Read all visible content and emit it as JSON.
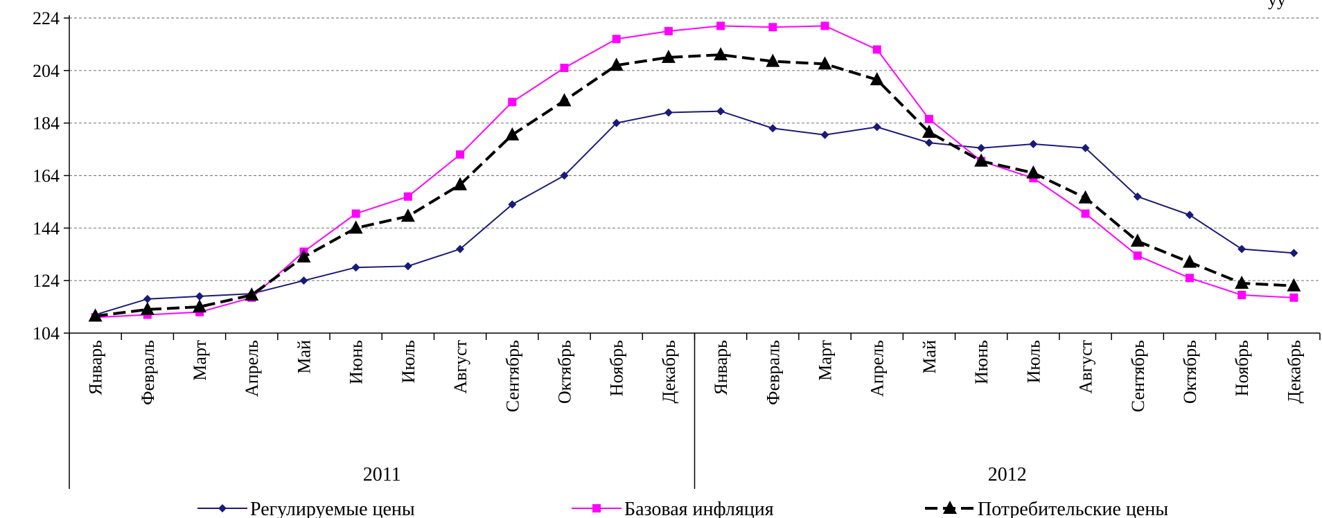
{
  "chart_data": {
    "type": "line",
    "title": "",
    "corner_note": "уу",
    "ylim": [
      104,
      224
    ],
    "yticks": [
      104,
      124,
      144,
      164,
      184,
      204,
      224
    ],
    "grid": "horizontal dashed",
    "legend_position": "bottom",
    "categories": [
      "Январь",
      "Февраль",
      "Март",
      "Апрель",
      "Май",
      "Июнь",
      "Июль",
      "Август",
      "Сентябрь",
      "Октябрь",
      "Ноябрь",
      "Декабрь",
      "Январь",
      "Февраль",
      "Март",
      "Апрель",
      "Май",
      "Июнь",
      "Июль",
      "Август",
      "Сентябрь",
      "Октябрь",
      "Ноябрь",
      "Декабрь"
    ],
    "year_groups": [
      {
        "label": "2011",
        "start": 0,
        "end": 11
      },
      {
        "label": "2012",
        "start": 12,
        "end": 23
      }
    ],
    "series": [
      {
        "name": "Регулируемые цены",
        "color": "#1a1a7a",
        "marker": "diamond",
        "dash": "solid",
        "values": [
          111,
          117,
          118,
          119,
          124,
          129,
          129.5,
          136,
          153,
          164,
          184,
          188,
          188.5,
          182,
          179.5,
          182.5,
          176.5,
          174.5,
          176,
          174.5,
          156,
          149,
          136,
          134.5
        ]
      },
      {
        "name": "Базовая инфляция",
        "color": "#ff00ff",
        "marker": "square",
        "dash": "solid",
        "values": [
          110,
          111,
          112,
          117.5,
          135,
          149.5,
          156,
          172,
          192,
          205,
          216,
          219,
          221,
          220.5,
          221,
          212,
          185.5,
          169.5,
          163,
          149.5,
          133.5,
          125,
          118.5,
          117.5
        ]
      },
      {
        "name": "Потребительские цены",
        "color": "#000000",
        "marker": "triangle",
        "dash": "dashed",
        "values": [
          110.5,
          113,
          114,
          118.5,
          133,
          144,
          148.5,
          160.5,
          179.5,
          192.5,
          206,
          209,
          210,
          207.5,
          206.5,
          200.5,
          180.5,
          169.5,
          165,
          155.5,
          139,
          131,
          123,
          122
        ]
      }
    ]
  }
}
